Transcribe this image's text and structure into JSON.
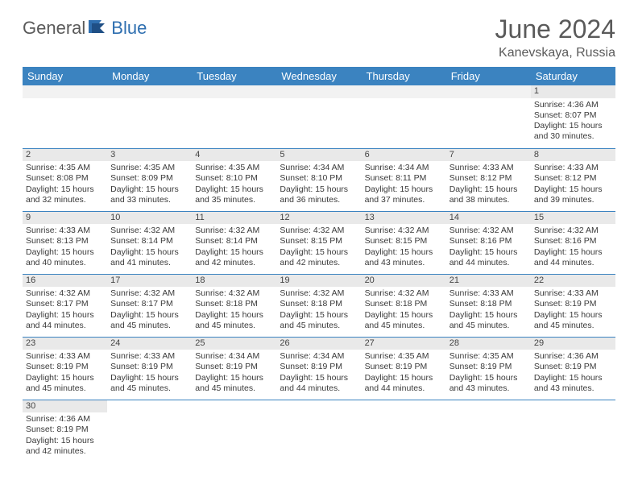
{
  "brand": {
    "part1": "General",
    "part2": "Blue"
  },
  "title": "June 2024",
  "location": "Kanevskaya, Russia",
  "colors": {
    "header_bg": "#3b83c0",
    "header_fg": "#ffffff",
    "rule": "#3b83c0",
    "daynum_bg": "#e9e9e9",
    "text": "#3a3a3a",
    "brand_gray": "#5a5a5a",
    "brand_blue": "#2f6fb0"
  },
  "weekdays": [
    "Sunday",
    "Monday",
    "Tuesday",
    "Wednesday",
    "Thursday",
    "Friday",
    "Saturday"
  ],
  "weeks": [
    [
      null,
      null,
      null,
      null,
      null,
      null,
      {
        "n": "1",
        "sr": "4:36 AM",
        "ss": "8:07 PM",
        "dl": "15 hours and 30 minutes."
      }
    ],
    [
      {
        "n": "2",
        "sr": "4:35 AM",
        "ss": "8:08 PM",
        "dl": "15 hours and 32 minutes."
      },
      {
        "n": "3",
        "sr": "4:35 AM",
        "ss": "8:09 PM",
        "dl": "15 hours and 33 minutes."
      },
      {
        "n": "4",
        "sr": "4:35 AM",
        "ss": "8:10 PM",
        "dl": "15 hours and 35 minutes."
      },
      {
        "n": "5",
        "sr": "4:34 AM",
        "ss": "8:10 PM",
        "dl": "15 hours and 36 minutes."
      },
      {
        "n": "6",
        "sr": "4:34 AM",
        "ss": "8:11 PM",
        "dl": "15 hours and 37 minutes."
      },
      {
        "n": "7",
        "sr": "4:33 AM",
        "ss": "8:12 PM",
        "dl": "15 hours and 38 minutes."
      },
      {
        "n": "8",
        "sr": "4:33 AM",
        "ss": "8:12 PM",
        "dl": "15 hours and 39 minutes."
      }
    ],
    [
      {
        "n": "9",
        "sr": "4:33 AM",
        "ss": "8:13 PM",
        "dl": "15 hours and 40 minutes."
      },
      {
        "n": "10",
        "sr": "4:32 AM",
        "ss": "8:14 PM",
        "dl": "15 hours and 41 minutes."
      },
      {
        "n": "11",
        "sr": "4:32 AM",
        "ss": "8:14 PM",
        "dl": "15 hours and 42 minutes."
      },
      {
        "n": "12",
        "sr": "4:32 AM",
        "ss": "8:15 PM",
        "dl": "15 hours and 42 minutes."
      },
      {
        "n": "13",
        "sr": "4:32 AM",
        "ss": "8:15 PM",
        "dl": "15 hours and 43 minutes."
      },
      {
        "n": "14",
        "sr": "4:32 AM",
        "ss": "8:16 PM",
        "dl": "15 hours and 44 minutes."
      },
      {
        "n": "15",
        "sr": "4:32 AM",
        "ss": "8:16 PM",
        "dl": "15 hours and 44 minutes."
      }
    ],
    [
      {
        "n": "16",
        "sr": "4:32 AM",
        "ss": "8:17 PM",
        "dl": "15 hours and 44 minutes."
      },
      {
        "n": "17",
        "sr": "4:32 AM",
        "ss": "8:17 PM",
        "dl": "15 hours and 45 minutes."
      },
      {
        "n": "18",
        "sr": "4:32 AM",
        "ss": "8:18 PM",
        "dl": "15 hours and 45 minutes."
      },
      {
        "n": "19",
        "sr": "4:32 AM",
        "ss": "8:18 PM",
        "dl": "15 hours and 45 minutes."
      },
      {
        "n": "20",
        "sr": "4:32 AM",
        "ss": "8:18 PM",
        "dl": "15 hours and 45 minutes."
      },
      {
        "n": "21",
        "sr": "4:33 AM",
        "ss": "8:18 PM",
        "dl": "15 hours and 45 minutes."
      },
      {
        "n": "22",
        "sr": "4:33 AM",
        "ss": "8:19 PM",
        "dl": "15 hours and 45 minutes."
      }
    ],
    [
      {
        "n": "23",
        "sr": "4:33 AM",
        "ss": "8:19 PM",
        "dl": "15 hours and 45 minutes."
      },
      {
        "n": "24",
        "sr": "4:33 AM",
        "ss": "8:19 PM",
        "dl": "15 hours and 45 minutes."
      },
      {
        "n": "25",
        "sr": "4:34 AM",
        "ss": "8:19 PM",
        "dl": "15 hours and 45 minutes."
      },
      {
        "n": "26",
        "sr": "4:34 AM",
        "ss": "8:19 PM",
        "dl": "15 hours and 44 minutes."
      },
      {
        "n": "27",
        "sr": "4:35 AM",
        "ss": "8:19 PM",
        "dl": "15 hours and 44 minutes."
      },
      {
        "n": "28",
        "sr": "4:35 AM",
        "ss": "8:19 PM",
        "dl": "15 hours and 43 minutes."
      },
      {
        "n": "29",
        "sr": "4:36 AM",
        "ss": "8:19 PM",
        "dl": "15 hours and 43 minutes."
      }
    ],
    [
      {
        "n": "30",
        "sr": "4:36 AM",
        "ss": "8:19 PM",
        "dl": "15 hours and 42 minutes."
      },
      null,
      null,
      null,
      null,
      null,
      null
    ]
  ],
  "labels": {
    "sunrise": "Sunrise:",
    "sunset": "Sunset:",
    "daylight": "Daylight:"
  }
}
